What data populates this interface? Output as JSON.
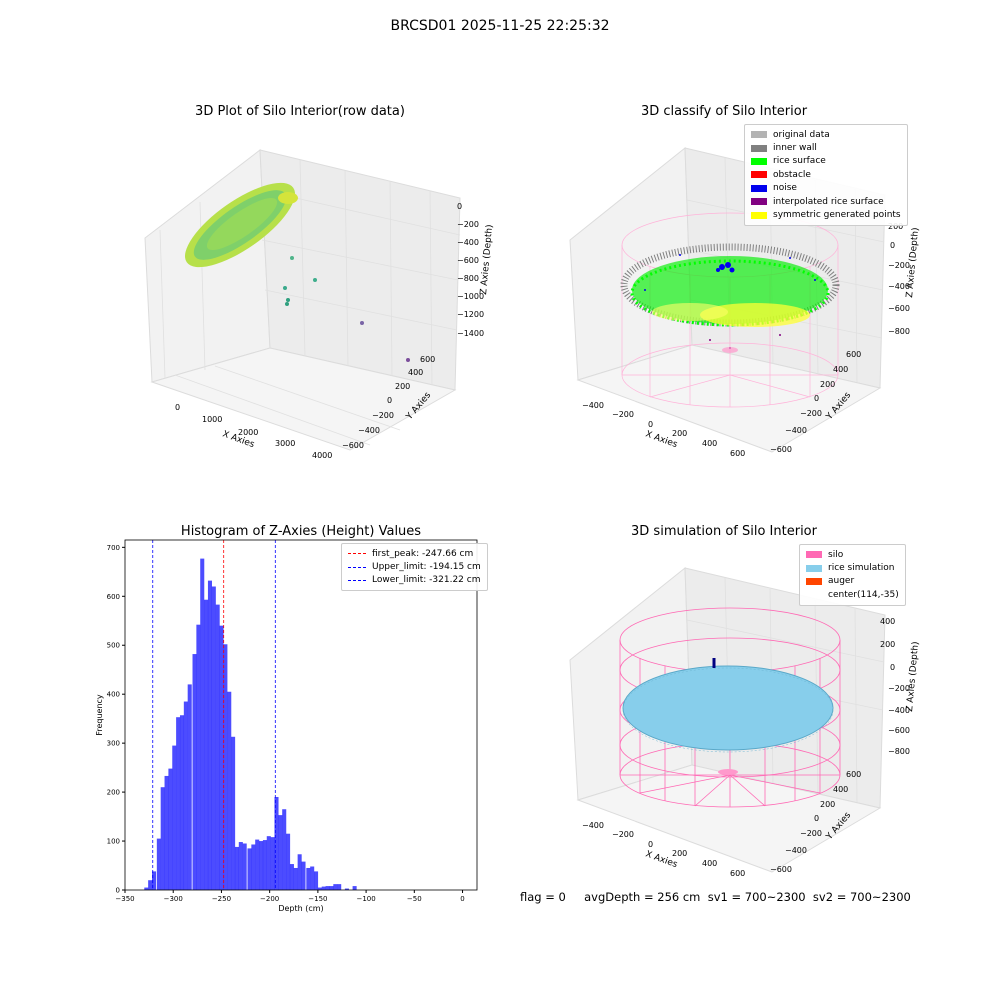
{
  "suptitle": "BRCSD01 2025-11-25 22:25:32",
  "panel1": {
    "title": "3D Plot of Silo Interior(row data)",
    "xlabel": "X Axies",
    "ylabel": "Y Axies",
    "zlabel": "Z Axies (Depth)",
    "xticks": [
      "0",
      "1000",
      "2000",
      "3000",
      "4000"
    ],
    "yticks": [
      "600",
      "400",
      "200",
      "0",
      "−200",
      "−400",
      "−600"
    ],
    "zticks": [
      "0",
      "−200",
      "−400",
      "−600",
      "−800",
      "−1000",
      "−1200",
      "−1400"
    ]
  },
  "panel2": {
    "title": "3D classify of Silo Interior",
    "xlabel": "X Axies",
    "ylabel": "Y Axies",
    "zlabel": "Z Axies (Depth)",
    "xticks": [
      "−400",
      "−200",
      "0",
      "200",
      "400",
      "600"
    ],
    "yticks": [
      "600",
      "400",
      "200",
      "0",
      "−200",
      "−400",
      "−600"
    ],
    "zticks": [
      "200",
      "0",
      "−200",
      "−400",
      "−600",
      "−800"
    ],
    "legend": [
      {
        "label": "original data",
        "color": "#b3b3b3"
      },
      {
        "label": "inner wall",
        "color": "#808080"
      },
      {
        "label": "rice surface",
        "color": "#00ff00"
      },
      {
        "label": "obstacle",
        "color": "#ff0000"
      },
      {
        "label": "noise",
        "color": "#0000ee"
      },
      {
        "label": "interpolated rice surface",
        "color": "#800080"
      },
      {
        "label": "symmetric generated points",
        "color": "#ffff00"
      }
    ]
  },
  "panel4": {
    "title": "3D simulation of Silo Interior",
    "xlabel": "X Axies",
    "ylabel": "Y Axies",
    "zlabel": "Z Axies (Depth)",
    "xticks": [
      "−400",
      "−200",
      "0",
      "200",
      "400",
      "600"
    ],
    "yticks": [
      "600",
      "400",
      "200",
      "0",
      "−200",
      "−400",
      "−600"
    ],
    "zticks": [
      "400",
      "200",
      "0",
      "−200",
      "−400",
      "−600",
      "−800"
    ],
    "legend": [
      {
        "label": "silo",
        "color": "#ff69b4"
      },
      {
        "label": "rice simulation",
        "color": "#87ceeb"
      },
      {
        "label": "auger",
        "color": "#ff4500"
      },
      {
        "label": "center(114,-35)",
        "color": ""
      }
    ]
  },
  "bottom_text": "flag = 0     avgDepth = 256 cm  sv1 = 700~2300  sv2 = 700~2300",
  "chart_data": {
    "type": "bar",
    "title": "Histogram of Z-Axies (Height) Values",
    "xlabel": "Depth (cm)",
    "ylabel": "Frequency",
    "xlim": [
      -350,
      15
    ],
    "ylim": [
      0,
      715
    ],
    "xticks": [
      -350,
      -300,
      -250,
      -200,
      -150,
      -100,
      -50,
      0
    ],
    "yticks": [
      0,
      100,
      200,
      300,
      400,
      500,
      600,
      700
    ],
    "bar_color": "#0000ff",
    "bins": [
      [
        -330,
        5
      ],
      [
        -326,
        20
      ],
      [
        -322,
        38
      ],
      [
        -317,
        105
      ],
      [
        -313,
        210
      ],
      [
        -309,
        233
      ],
      [
        -305,
        248
      ],
      [
        -301,
        295
      ],
      [
        -297,
        353
      ],
      [
        -293,
        357
      ],
      [
        -289,
        385
      ],
      [
        -285,
        420
      ],
      [
        -280,
        482
      ],
      [
        -276,
        542
      ],
      [
        -272,
        677
      ],
      [
        -268,
        593
      ],
      [
        -264,
        632
      ],
      [
        -260,
        620
      ],
      [
        -256,
        583
      ],
      [
        -252,
        540
      ],
      [
        -248,
        502
      ],
      [
        -244,
        405
      ],
      [
        -240,
        313
      ],
      [
        -236,
        88
      ],
      [
        -232,
        98
      ],
      [
        -228,
        95
      ],
      [
        -223,
        85
      ],
      [
        -219,
        93
      ],
      [
        -215,
        103
      ],
      [
        -211,
        100
      ],
      [
        -207,
        102
      ],
      [
        -203,
        110
      ],
      [
        -199,
        108
      ],
      [
        -195,
        190
      ],
      [
        -191,
        153
      ],
      [
        -187,
        165
      ],
      [
        -183,
        115
      ],
      [
        -179,
        53
      ],
      [
        -175,
        45
      ],
      [
        -171,
        73
      ],
      [
        -167,
        58
      ],
      [
        -162,
        45
      ],
      [
        -158,
        48
      ],
      [
        -154,
        38
      ],
      [
        -150,
        5
      ],
      [
        -146,
        7
      ],
      [
        -142,
        8
      ],
      [
        -138,
        8
      ],
      [
        -134,
        12
      ],
      [
        -130,
        12
      ],
      [
        -122,
        3
      ],
      [
        -114,
        8
      ]
    ],
    "vlines": [
      {
        "label": "first_peak: -247.66 cm",
        "x": -247.66,
        "color": "#ff0000"
      },
      {
        "label": "Upper_limit: -194.15 cm",
        "x": -194.15,
        "color": "#0000ff"
      },
      {
        "label": "Lower_limit: -321.22 cm",
        "x": -321.22,
        "color": "#0000ff"
      }
    ],
    "legend_position": "upper right"
  }
}
